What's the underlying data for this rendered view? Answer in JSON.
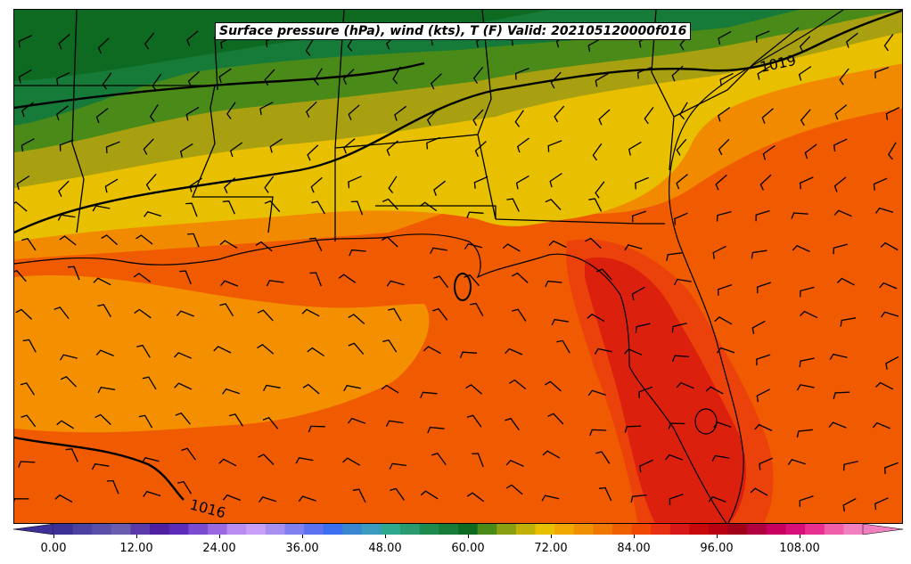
{
  "title": "Surface pressure (hPa), wind (kts), T (F) Valid: 202105120000f016",
  "isobars": [
    {
      "label": "1019"
    },
    {
      "label": "1016"
    }
  ],
  "colorbar": {
    "ticks": [
      "0.00",
      "12.00",
      "24.00",
      "36.00",
      "48.00",
      "60.00",
      "72.00",
      "84.00",
      "96.00",
      "108.00"
    ],
    "colors": [
      "#3c2f96",
      "#4a41a0",
      "#5a4fa8",
      "#6a5db0",
      "#5a3aa8",
      "#4c20a0",
      "#5a2cb8",
      "#7a4ad0",
      "#9a68e0",
      "#b88cf0",
      "#c8a0f8",
      "#a890f0",
      "#8080f0",
      "#5c72f0",
      "#3c6ef0",
      "#3a86d0",
      "#3a9ac0",
      "#2fa890",
      "#2a9a70",
      "#1f8a50",
      "#167a38",
      "#0e6a20",
      "#4a8a18",
      "#8aa010",
      "#c0b008",
      "#e8c000",
      "#f0a800",
      "#f09000",
      "#f07800",
      "#f06000",
      "#f04800",
      "#e83010",
      "#d81818",
      "#c80808",
      "#b80010",
      "#a00018",
      "#b00040",
      "#c80060",
      "#d8107a",
      "#e83090",
      "#f060a8",
      "#f080c0"
    ]
  },
  "chart_data": {
    "type": "map",
    "title": "Surface pressure (hPa), wind (kts), T (F) Valid: 202105120000f016",
    "contour_labels": [
      "1019",
      "1016"
    ],
    "colorbar_range": [
      0,
      120
    ],
    "colorbar_ticks": [
      0,
      12,
      24,
      36,
      48,
      60,
      72,
      84,
      96,
      108
    ]
  }
}
